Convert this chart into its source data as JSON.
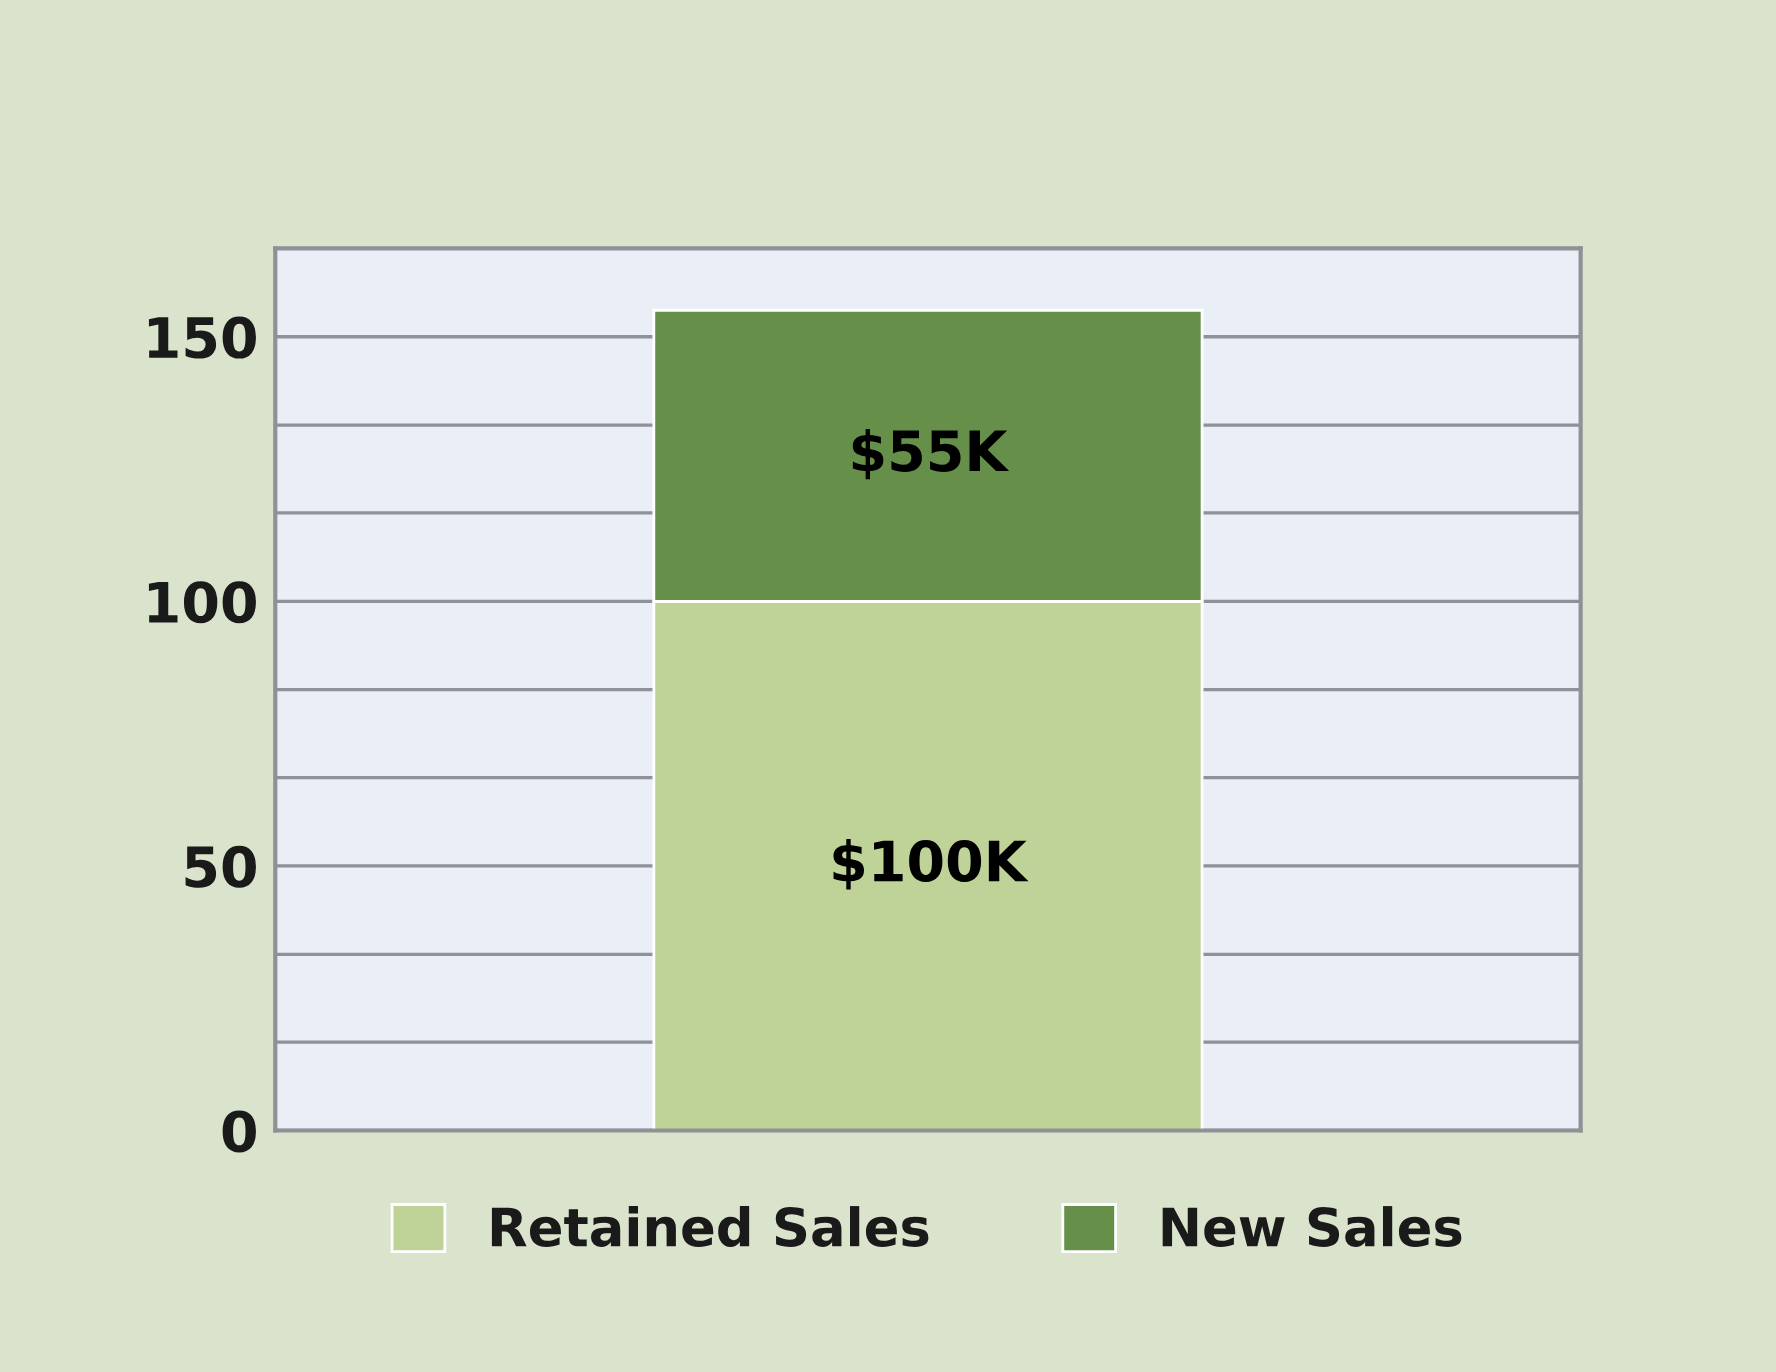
{
  "chart_data": {
    "type": "bar",
    "stacked": true,
    "categories": [
      null
    ],
    "series": [
      {
        "name": "Retained Sales",
        "color": "#bfd398",
        "values": [
          100
        ],
        "value_labels": [
          "$100K"
        ]
      },
      {
        "name": "New Sales",
        "color": "#66904a",
        "values": [
          55
        ],
        "value_labels": [
          "$55K"
        ]
      }
    ],
    "ylim": [
      0,
      166.7
    ],
    "yticks": [
      0,
      {
        "value": 16.7,
        "label": null
      },
      {
        "value": 33.3,
        "label": null
      },
      50,
      {
        "value": 66.7,
        "label": null
      },
      {
        "value": 83.3,
        "label": null
      },
      100,
      {
        "value": 116.7,
        "label": null
      },
      {
        "value": 133.3,
        "label": null
      },
      150,
      {
        "value": 166.7,
        "label": null
      }
    ],
    "grid": "y",
    "legend": "bottom"
  }
}
